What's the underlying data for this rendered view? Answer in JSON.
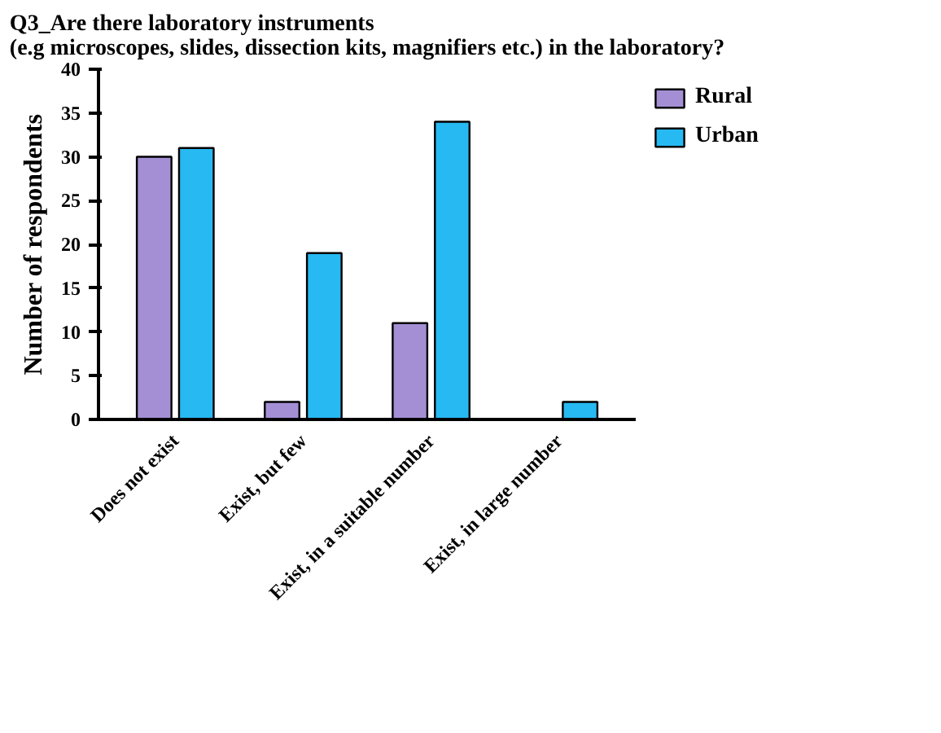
{
  "chart_data": {
    "type": "bar",
    "title": "Q3_Are there laboratory instruments\n(e.g microscopes, slides, dissection kits, magnifiers etc.) in the laboratory?",
    "ylabel": "Number of respondents",
    "categories": [
      "Does not exist",
      "Exist, but few",
      "Exist, in a suitable number",
      "Exist, in large number"
    ],
    "series": [
      {
        "name": "Rural",
        "color": "#a48fd5",
        "values": [
          30,
          2,
          11,
          0
        ]
      },
      {
        "name": "Urban",
        "color": "#27b9f2",
        "values": [
          31,
          19,
          34,
          2
        ]
      }
    ],
    "ylim": [
      0,
      40
    ],
    "yticks": [
      0,
      5,
      10,
      15,
      20,
      25,
      30,
      35,
      40
    ],
    "grid": false,
    "legend": "top right"
  }
}
